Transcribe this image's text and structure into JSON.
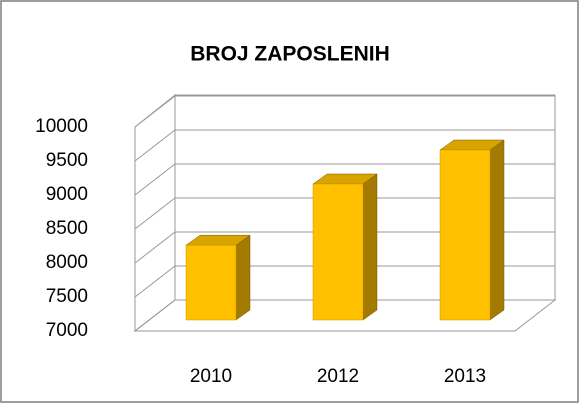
{
  "chart_data": {
    "type": "bar3d",
    "title": "BROJ ZAPOSLENIH",
    "categories": [
      "2010",
      "2012",
      "2013"
    ],
    "values": [
      8100,
      9000,
      9500
    ],
    "color": "#ffc000",
    "ylim": [
      7000,
      10000
    ],
    "yticks": [
      7000,
      7500,
      8000,
      8500,
      9000,
      9500,
      10000
    ],
    "grid": true
  }
}
